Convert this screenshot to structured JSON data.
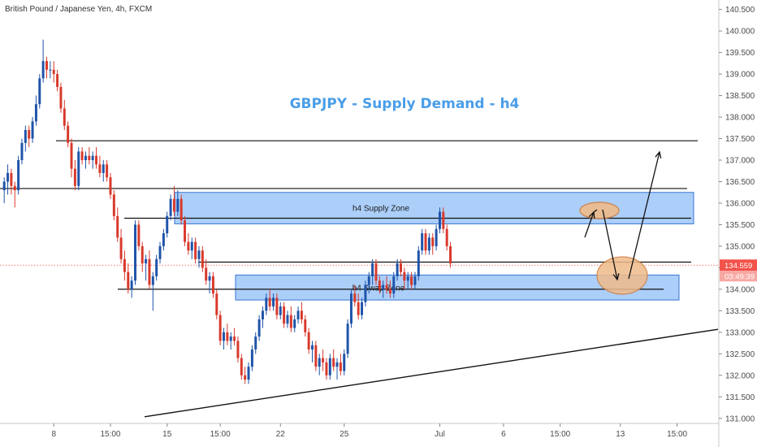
{
  "symbol": "British Pound / Japanese Yen, 4h, FXCM",
  "chart_data": {
    "type": "candlestick",
    "title": "GBPJPY - Supply Demand - h4",
    "ylim": [
      130.92,
      140.72
    ],
    "y_ticks": [
      131.0,
      131.5,
      132.0,
      132.5,
      133.0,
      133.5,
      134.0,
      134.5,
      135.0,
      135.5,
      136.0,
      136.5,
      137.0,
      137.5,
      138.0,
      138.5,
      139.0,
      139.5,
      140.0,
      140.5
    ],
    "y_tick_labels": [
      "131.000",
      "131.500",
      "132.000",
      "132.500",
      "133.000",
      "133.500",
      "134.000",
      "134.500",
      "135.000",
      "135.500",
      "136.000",
      "136.500",
      "137.000",
      "137.500",
      "138.000",
      "138.500",
      "139.000",
      "139.500",
      "140.000",
      "140.500"
    ],
    "x_tick_labels": [
      {
        "label": "8",
        "bar": 14
      },
      {
        "label": "15:00",
        "bar": 30
      },
      {
        "label": "15",
        "bar": 46
      },
      {
        "label": "15:00",
        "bar": 61
      },
      {
        "label": "22",
        "bar": 78
      },
      {
        "label": "25",
        "bar": 96
      },
      {
        "label": "Jul",
        "bar": 123
      },
      {
        "label": "6",
        "bar": 141
      },
      {
        "label": "15:00",
        "bar": 157
      },
      {
        "label": "13",
        "bar": 174
      },
      {
        "label": "15:00",
        "bar": 190
      }
    ],
    "candles": [
      [
        136.3,
        136.6,
        136.0,
        136.5
      ],
      [
        136.5,
        136.9,
        136.2,
        136.7
      ],
      [
        136.7,
        136.8,
        136.2,
        136.4
      ],
      [
        136.4,
        136.5,
        135.9,
        136.3
      ],
      [
        136.3,
        137.1,
        136.2,
        137.0
      ],
      [
        137.0,
        137.5,
        136.9,
        137.4
      ],
      [
        137.4,
        137.8,
        137.2,
        137.7
      ],
      [
        137.7,
        137.8,
        137.3,
        137.5
      ],
      [
        137.5,
        138.0,
        137.4,
        137.9
      ],
      [
        137.9,
        138.5,
        137.8,
        138.3
      ],
      [
        138.3,
        139.0,
        138.2,
        138.9
      ],
      [
        138.9,
        139.8,
        138.8,
        139.3
      ],
      [
        139.3,
        139.4,
        138.9,
        139.1
      ],
      [
        139.1,
        139.3,
        138.9,
        139.1
      ],
      [
        139.1,
        139.3,
        138.8,
        139.0
      ],
      [
        139.0,
        139.1,
        138.6,
        138.7
      ],
      [
        138.7,
        138.8,
        138.1,
        138.2
      ],
      [
        138.2,
        138.4,
        137.7,
        137.8
      ],
      [
        137.8,
        137.9,
        137.3,
        137.4
      ],
      [
        137.4,
        137.5,
        136.6,
        136.8
      ],
      [
        136.8,
        137.0,
        136.3,
        136.4
      ],
      [
        136.4,
        137.3,
        136.3,
        137.2
      ],
      [
        137.2,
        137.3,
        136.9,
        137.0
      ],
      [
        137.0,
        137.2,
        136.8,
        137.1
      ],
      [
        137.1,
        137.3,
        136.9,
        137.0
      ],
      [
        137.0,
        137.2,
        136.8,
        137.1
      ],
      [
        137.1,
        137.3,
        136.8,
        136.9
      ],
      [
        136.9,
        137.1,
        136.6,
        136.7
      ],
      [
        136.7,
        137.0,
        136.5,
        136.9
      ],
      [
        136.9,
        137.0,
        136.5,
        136.6
      ],
      [
        136.6,
        136.7,
        136.1,
        136.2
      ],
      [
        136.2,
        136.3,
        135.6,
        135.7
      ],
      [
        135.7,
        135.9,
        135.1,
        135.2
      ],
      [
        135.2,
        135.4,
        134.6,
        134.7
      ],
      [
        134.7,
        134.9,
        134.2,
        134.4
      ],
      [
        134.4,
        134.6,
        133.9,
        134.0
      ],
      [
        134.0,
        134.3,
        133.8,
        134.2
      ],
      [
        134.2,
        135.6,
        134.1,
        135.5
      ],
      [
        135.5,
        135.6,
        134.9,
        135.0
      ],
      [
        135.0,
        135.1,
        134.4,
        134.6
      ],
      [
        134.6,
        134.8,
        134.2,
        134.7
      ],
      [
        134.7,
        134.9,
        134.0,
        134.1
      ],
      [
        134.1,
        134.4,
        133.5,
        134.3
      ],
      [
        134.3,
        134.8,
        134.2,
        134.7
      ],
      [
        134.7,
        135.1,
        134.6,
        135.0
      ],
      [
        135.0,
        135.4,
        134.9,
        135.3
      ],
      [
        135.3,
        135.8,
        135.2,
        135.7
      ],
      [
        135.7,
        136.2,
        135.6,
        136.1
      ],
      [
        136.1,
        136.4,
        135.7,
        135.8
      ],
      [
        135.8,
        136.3,
        135.7,
        136.1
      ],
      [
        136.1,
        136.2,
        135.5,
        135.6
      ],
      [
        135.6,
        135.7,
        135.0,
        135.1
      ],
      [
        135.1,
        135.3,
        134.8,
        134.9
      ],
      [
        134.9,
        135.2,
        134.7,
        135.1
      ],
      [
        135.1,
        135.2,
        134.6,
        134.7
      ],
      [
        134.7,
        135.0,
        134.5,
        134.9
      ],
      [
        134.9,
        135.0,
        134.4,
        134.5
      ],
      [
        134.5,
        134.7,
        134.1,
        134.2
      ],
      [
        134.2,
        134.4,
        133.9,
        134.3
      ],
      [
        134.3,
        134.4,
        133.8,
        133.9
      ],
      [
        133.9,
        134.0,
        133.3,
        133.4
      ],
      [
        133.4,
        133.5,
        132.7,
        132.8
      ],
      [
        132.8,
        133.1,
        132.6,
        133.0
      ],
      [
        133.0,
        133.2,
        132.7,
        132.8
      ],
      [
        132.8,
        133.0,
        132.6,
        132.9
      ],
      [
        132.9,
        133.1,
        132.7,
        132.8
      ],
      [
        132.8,
        132.9,
        132.3,
        132.4
      ],
      [
        132.4,
        132.5,
        131.9,
        132.0
      ],
      [
        132.0,
        132.2,
        131.8,
        131.9
      ],
      [
        131.9,
        132.3,
        131.8,
        132.2
      ],
      [
        132.2,
        132.7,
        132.1,
        132.6
      ],
      [
        132.6,
        133.0,
        132.5,
        132.9
      ],
      [
        132.9,
        133.4,
        132.8,
        133.3
      ],
      [
        133.3,
        133.6,
        133.1,
        133.5
      ],
      [
        133.5,
        133.9,
        133.4,
        133.8
      ],
      [
        133.8,
        134.0,
        133.5,
        133.6
      ],
      [
        133.6,
        133.9,
        133.5,
        133.8
      ],
      [
        133.8,
        133.9,
        133.3,
        133.4
      ],
      [
        133.4,
        133.7,
        133.3,
        133.6
      ],
      [
        133.6,
        133.7,
        133.1,
        133.2
      ],
      [
        133.2,
        133.5,
        133.1,
        133.4
      ],
      [
        133.4,
        133.6,
        133.0,
        133.1
      ],
      [
        133.1,
        133.4,
        133.0,
        133.3
      ],
      [
        133.3,
        133.6,
        133.2,
        133.5
      ],
      [
        133.5,
        133.7,
        133.2,
        133.3
      ],
      [
        133.3,
        133.4,
        132.9,
        133.0
      ],
      [
        133.0,
        133.1,
        132.5,
        132.6
      ],
      [
        132.6,
        132.8,
        132.3,
        132.7
      ],
      [
        132.7,
        132.8,
        132.1,
        132.2
      ],
      [
        132.2,
        132.5,
        132.0,
        132.4
      ],
      [
        132.4,
        132.6,
        132.1,
        132.3
      ],
      [
        132.3,
        132.4,
        131.9,
        132.0
      ],
      [
        132.0,
        132.5,
        131.9,
        132.4
      ],
      [
        132.4,
        132.6,
        132.1,
        132.2
      ],
      [
        132.2,
        132.4,
        131.9,
        132.3
      ],
      [
        132.3,
        132.5,
        132.0,
        132.1
      ],
      [
        132.1,
        132.6,
        132.0,
        132.5
      ],
      [
        132.5,
        133.3,
        132.4,
        133.2
      ],
      [
        133.2,
        134.0,
        133.1,
        133.9
      ],
      [
        133.9,
        134.1,
        133.6,
        133.7
      ],
      [
        133.7,
        133.9,
        133.3,
        133.4
      ],
      [
        133.4,
        133.8,
        133.3,
        133.7
      ],
      [
        133.7,
        134.2,
        133.6,
        134.1
      ],
      [
        134.1,
        134.4,
        133.9,
        134.3
      ],
      [
        134.3,
        134.7,
        134.1,
        134.6
      ],
      [
        134.6,
        134.7,
        134.1,
        134.2
      ],
      [
        134.2,
        134.3,
        133.9,
        134.0
      ],
      [
        134.0,
        134.2,
        133.8,
        134.1
      ],
      [
        134.1,
        134.3,
        133.9,
        134.0
      ],
      [
        134.0,
        134.2,
        133.8,
        133.9
      ],
      [
        133.9,
        134.4,
        133.8,
        134.3
      ],
      [
        134.3,
        134.7,
        134.2,
        134.6
      ],
      [
        134.6,
        134.7,
        134.3,
        134.4
      ],
      [
        134.4,
        134.5,
        134.0,
        134.2
      ],
      [
        134.2,
        134.4,
        134.0,
        134.3
      ],
      [
        134.3,
        134.4,
        134.0,
        134.1
      ],
      [
        134.1,
        134.4,
        134.0,
        134.3
      ],
      [
        134.3,
        135.0,
        134.2,
        134.9
      ],
      [
        134.9,
        135.4,
        134.8,
        135.3
      ],
      [
        135.3,
        135.4,
        134.8,
        134.9
      ],
      [
        134.9,
        135.3,
        134.8,
        135.2
      ],
      [
        135.2,
        135.3,
        134.8,
        135.0
      ],
      [
        135.0,
        135.5,
        134.9,
        135.4
      ],
      [
        135.4,
        135.9,
        135.3,
        135.8
      ],
      [
        135.8,
        135.9,
        135.3,
        135.4
      ],
      [
        135.4,
        135.5,
        134.9,
        135.0
      ],
      [
        135.0,
        135.1,
        134.5,
        134.6
      ]
    ],
    "last_price": "134.559",
    "countdown": "03:49:39",
    "horizontal_lines": [
      137.45,
      136.34,
      135.65,
      134.63,
      134.0
    ],
    "zones": [
      {
        "label": "h4 Supply Zone",
        "top": 136.25,
        "bottom": 135.52
      },
      {
        "label": "h4 Swap Zone",
        "top": 134.33,
        "bottom": 133.75
      }
    ],
    "trendline": {
      "from": [
        131.0,
        0.2
      ],
      "to": [
        133.07,
        1.0
      ]
    },
    "colors": {
      "up": "#1e53a9",
      "down": "#d8392b",
      "zone_fill": "#a8cdfa",
      "zone_border": "#2f6fcf",
      "ellipse_fill": "#efbb8a",
      "ellipse_border": "#d07a3a",
      "title": "#4a9ee8",
      "price_tag": "#f2524a"
    }
  }
}
